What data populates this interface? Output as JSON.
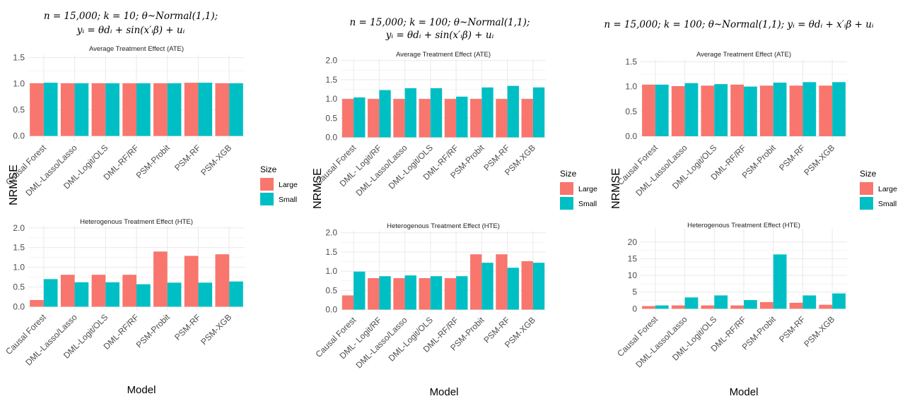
{
  "colors": {
    "Large": "#F8766D",
    "Small": "#00BFC4",
    "grid": "#EBEBEB",
    "text": "#4D4D4D"
  },
  "legend": {
    "title": "Size",
    "labels": [
      "Large",
      "Small"
    ]
  },
  "panels": [
    {
      "heading_lines": [
        "n = 15,000; k = 10; θ~Normal(1,1);",
        "yᵢ = θdᵢ + sin(x′ᵢβ) + uᵢ"
      ],
      "ylabel": "NRMSE",
      "xlabel": "Model"
    },
    {
      "heading_lines": [
        "n = 15,000; k = 100; θ~Normal(1,1);",
        "yᵢ = θdᵢ + sin(x′ᵢβ) + uᵢ"
      ],
      "ylabel": "NRMSE",
      "xlabel": "Model"
    },
    {
      "heading_lines": [
        "n = 15,000; k = 100; θ~Normal(1,1); yᵢ = θdᵢ + x′ᵢβ + uᵢ"
      ],
      "ylabel": "NRMSE",
      "xlabel": "Model"
    }
  ],
  "chart_data": [
    {
      "type": "bar",
      "panel": 0,
      "title": "Average Treatment Effect (ATE)",
      "categories": [
        "Causal Forest",
        "DML-Lasso/Lasso",
        "DML-Logit/OLS",
        "DML-RF/RF",
        "PSM-Probit",
        "PSM-RF",
        "PSM-XGB"
      ],
      "series": [
        {
          "name": "Large",
          "values": [
            1.01,
            1.01,
            1.01,
            1.01,
            1.01,
            1.02,
            1.01
          ]
        },
        {
          "name": "Small",
          "values": [
            1.02,
            1.01,
            1.01,
            1.01,
            1.01,
            1.02,
            1.01
          ]
        }
      ],
      "ylim": [
        -0.1,
        1.55
      ],
      "yticks": [
        0.0,
        0.5,
        1.0,
        1.5
      ],
      "grid": true
    },
    {
      "type": "bar",
      "panel": 0,
      "title": "Heterogenous Treatment Effect (HTE)",
      "categories": [
        "Causal Forest",
        "DML-Lasso/Lasso",
        "DML-Logit/OLS",
        "DML-RF/RF",
        "PSM-Probit",
        "PSM-RF",
        "PSM-XGB"
      ],
      "series": [
        {
          "name": "Large",
          "values": [
            0.17,
            0.81,
            0.81,
            0.81,
            1.4,
            1.29,
            1.33
          ]
        },
        {
          "name": "Small",
          "values": [
            0.7,
            0.62,
            0.62,
            0.57,
            0.61,
            0.61,
            0.64
          ]
        }
      ],
      "ylim": [
        -0.1,
        2.05
      ],
      "yticks": [
        0.0,
        0.5,
        1.0,
        1.5,
        2.0
      ],
      "grid": true
    },
    {
      "type": "bar",
      "panel": 1,
      "title": "Average Treatment Effect (ATE)",
      "categories": [
        "Causal Forest",
        "DML- Logit/RF",
        "DML-Lasso/Lasso",
        "DML-Logit/OLS",
        "DML-RF/RF",
        "PSM-Probit",
        "PSM-RF",
        "PSM-XGB"
      ],
      "series": [
        {
          "name": "Large",
          "values": [
            1.0,
            1.0,
            1.0,
            1.0,
            1.0,
            1.0,
            1.0,
            1.0
          ]
        },
        {
          "name": "Small",
          "values": [
            1.04,
            1.23,
            1.28,
            1.28,
            1.06,
            1.3,
            1.34,
            1.3
          ]
        }
      ],
      "ylim": [
        -0.1,
        2.05
      ],
      "yticks": [
        0.0,
        0.5,
        1.0,
        1.5,
        2.0
      ],
      "grid": true
    },
    {
      "type": "bar",
      "panel": 1,
      "title": "Heterogenous Treatment Effect (HTE)",
      "categories": [
        "Causal Forest",
        "DML- Logit/RF",
        "DML-Lasso/Lasso",
        "DML-Logit/OLS",
        "DML-RF/RF",
        "PSM-Probit",
        "PSM-RF",
        "PSM-XGB"
      ],
      "series": [
        {
          "name": "Large",
          "values": [
            0.37,
            0.82,
            0.82,
            0.82,
            0.82,
            1.44,
            1.44,
            1.26
          ]
        },
        {
          "name": "Small",
          "values": [
            0.99,
            0.87,
            0.89,
            0.87,
            0.87,
            1.22,
            1.09,
            1.22
          ]
        }
      ],
      "ylim": [
        -0.1,
        2.05
      ],
      "yticks": [
        0.0,
        0.5,
        1.0,
        1.5,
        2.0
      ],
      "grid": true
    },
    {
      "type": "bar",
      "panel": 2,
      "title": "Average Treatment Effect (ATE)",
      "categories": [
        "Causal Forest",
        "DML-Lasso/Lasso",
        "DML-Logit/OLS",
        "DML-RF/RF",
        "PSM-Probit",
        "PSM-RF",
        "PSM-XGB"
      ],
      "series": [
        {
          "name": "Large",
          "values": [
            1.04,
            1.01,
            1.02,
            1.04,
            1.02,
            1.02,
            1.02
          ]
        },
        {
          "name": "Small",
          "values": [
            1.04,
            1.07,
            1.05,
            1.0,
            1.08,
            1.09,
            1.09
          ]
        }
      ],
      "ylim": [
        -0.1,
        1.55
      ],
      "yticks": [
        0.0,
        0.5,
        1.0,
        1.5
      ],
      "grid": true
    },
    {
      "type": "bar",
      "panel": 2,
      "title": "Heterogenous Treatment Effect (HTE)",
      "categories": [
        "Causal Forest",
        "DML-Lasso/Lasso",
        "DML-Logit/OLS",
        "DML-RF/RF",
        "PSM-Probit",
        "PSM-RF",
        "PSM-XGB"
      ],
      "series": [
        {
          "name": "Large",
          "values": [
            0.8,
            1.0,
            1.0,
            1.0,
            2.0,
            1.8,
            1.2
          ]
        },
        {
          "name": "Small",
          "values": [
            1.0,
            3.4,
            4.0,
            2.6,
            16.3,
            4.0,
            4.6
          ]
        }
      ],
      "ylim": [
        -1.2,
        24.0
      ],
      "yticks": [
        0,
        5,
        10,
        15,
        20
      ],
      "grid": true
    }
  ]
}
